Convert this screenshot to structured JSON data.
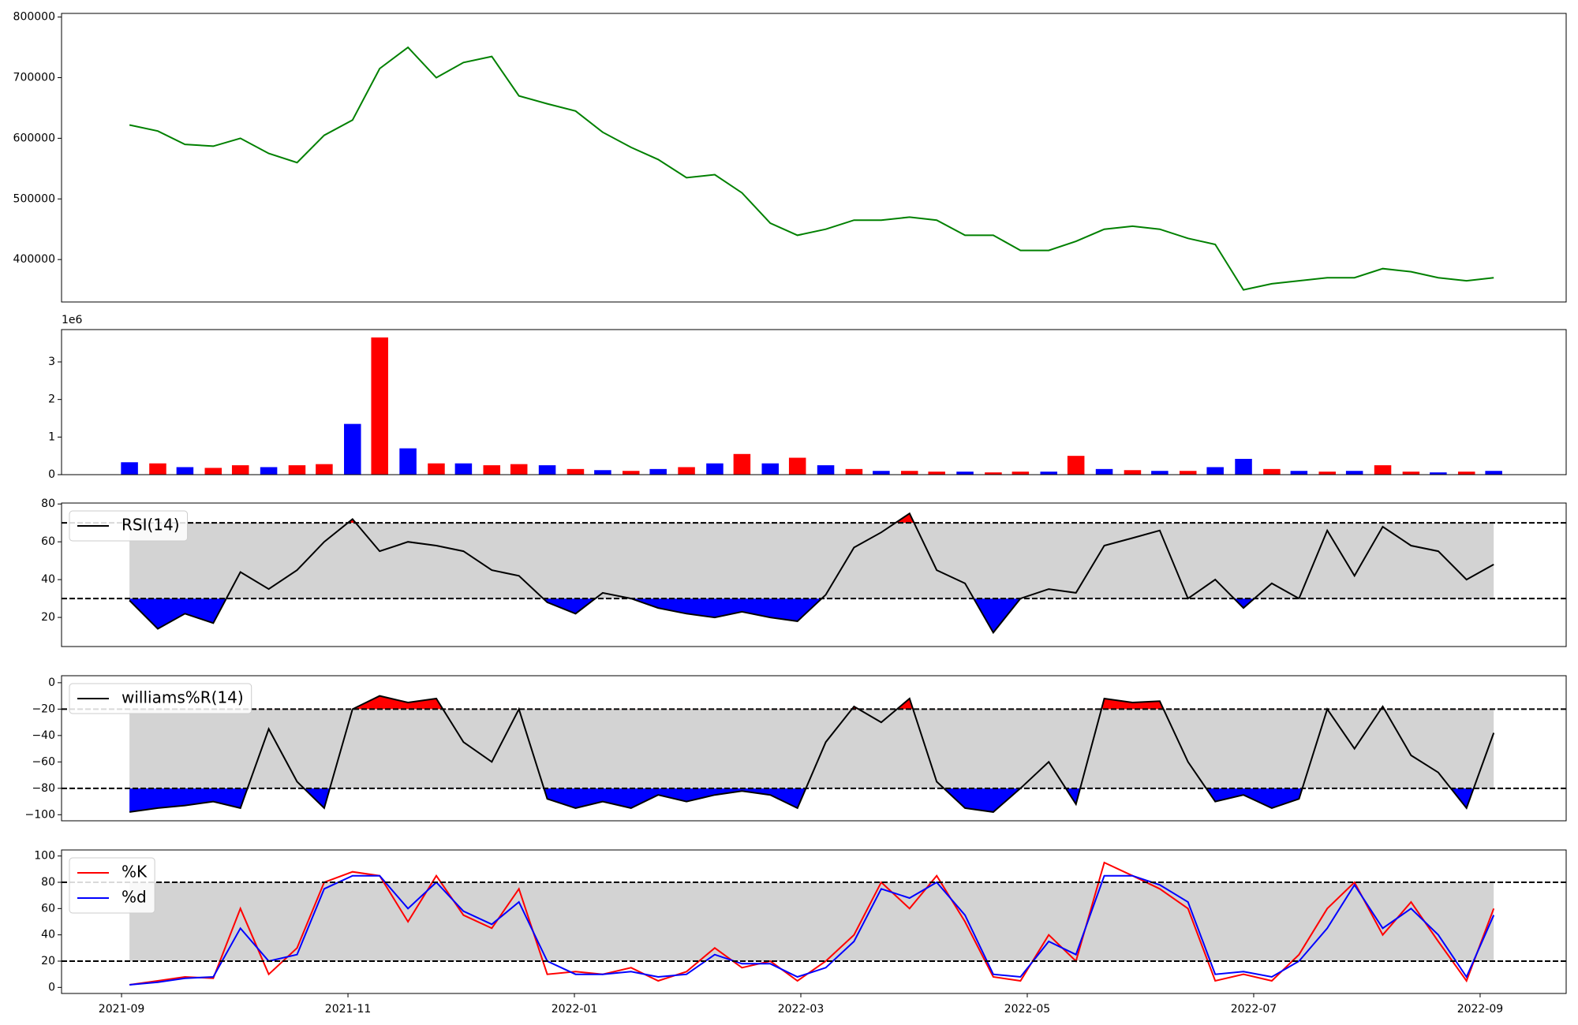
{
  "chart_data": [
    {
      "type": "line",
      "color": "#008000",
      "x": [
        0.07,
        0.32,
        0.56,
        0.81,
        1.05,
        1.3,
        1.55,
        1.79,
        2.04,
        2.28,
        2.53,
        2.78,
        3.02,
        3.27,
        3.51,
        3.76,
        4.01,
        4.25,
        4.5,
        4.74,
        4.99,
        5.24,
        5.48,
        5.73,
        5.97,
        6.22,
        6.47,
        6.71,
        6.96,
        7.2,
        7.45,
        7.7,
        7.94,
        8.19,
        8.43,
        8.68,
        8.93,
        9.17,
        9.42,
        9.66,
        9.91,
        10.16,
        10.4,
        10.65,
        10.89,
        11.14,
        11.39,
        11.63,
        11.88,
        12.12
      ],
      "values": [
        622000,
        612000,
        590000,
        587000,
        600000,
        575000,
        560000,
        605000,
        630000,
        715000,
        750000,
        700000,
        725000,
        735000,
        670000,
        657000,
        645000,
        610000,
        585000,
        565000,
        535000,
        540000,
        510000,
        460000,
        440000,
        450000,
        465000,
        465000,
        470000,
        465000,
        440000,
        440000,
        415000,
        415000,
        430000,
        450000,
        455000,
        450000,
        435000,
        425000,
        350000,
        360000,
        365000,
        370000,
        370000,
        385000,
        380000,
        370000,
        365000,
        370000
      ],
      "xlim": [
        -0.53,
        12.76
      ],
      "ylim": [
        330000,
        806000
      ],
      "yticks": [
        400000,
        500000,
        600000,
        700000,
        800000
      ]
    },
    {
      "type": "bar",
      "offset_text": "1e6",
      "x": [
        0.07,
        0.32,
        0.56,
        0.81,
        1.05,
        1.3,
        1.55,
        1.79,
        2.04,
        2.28,
        2.53,
        2.78,
        3.02,
        3.27,
        3.51,
        3.76,
        4.01,
        4.25,
        4.5,
        4.74,
        4.99,
        5.24,
        5.48,
        5.73,
        5.97,
        6.22,
        6.47,
        6.71,
        6.96,
        7.2,
        7.45,
        7.7,
        7.94,
        8.19,
        8.43,
        8.68,
        8.93,
        9.17,
        9.42,
        9.66,
        9.91,
        10.16,
        10.4,
        10.65,
        10.89,
        11.14,
        11.39,
        11.63,
        11.88,
        12.12
      ],
      "values": [
        0.33,
        0.3,
        0.2,
        0.18,
        0.25,
        0.2,
        0.25,
        0.28,
        1.35,
        3.65,
        0.7,
        0.3,
        0.3,
        0.25,
        0.28,
        0.25,
        0.15,
        0.12,
        0.1,
        0.15,
        0.2,
        0.3,
        0.55,
        0.3,
        0.45,
        0.25,
        0.15,
        0.1,
        0.1,
        0.08,
        0.08,
        0.06,
        0.08,
        0.08,
        0.5,
        0.15,
        0.12,
        0.1,
        0.1,
        0.2,
        0.42,
        0.15,
        0.1,
        0.08,
        0.1,
        0.25,
        0.08,
        0.06,
        0.08,
        0.1
      ],
      "colors": [
        "#0000ff",
        "#ff0000",
        "#0000ff",
        "#ff0000",
        "#ff0000",
        "#0000ff",
        "#ff0000",
        "#ff0000",
        "#0000ff",
        "#ff0000",
        "#0000ff",
        "#ff0000",
        "#0000ff",
        "#ff0000",
        "#ff0000",
        "#0000ff",
        "#ff0000",
        "#0000ff",
        "#ff0000",
        "#0000ff",
        "#ff0000",
        "#0000ff",
        "#ff0000",
        "#0000ff",
        "#ff0000",
        "#0000ff",
        "#ff0000",
        "#0000ff",
        "#ff0000",
        "#ff0000",
        "#0000ff",
        "#ff0000",
        "#ff0000",
        "#0000ff",
        "#ff0000",
        "#0000ff",
        "#ff0000",
        "#0000ff",
        "#ff0000",
        "#0000ff",
        "#0000ff",
        "#ff0000",
        "#0000ff",
        "#ff0000",
        "#0000ff",
        "#ff0000",
        "#ff0000",
        "#0000ff",
        "#ff0000",
        "#0000ff"
      ],
      "xlim": [
        -0.53,
        12.76
      ],
      "ylim": [
        0,
        3.86
      ],
      "yticks": [
        0,
        1,
        2,
        3
      ]
    },
    {
      "type": "line",
      "legend": "upper left",
      "levels": [
        30,
        70
      ],
      "band_color": "#d3d3d3",
      "extreme_fill": {
        "above": "#ff0000",
        "below": "#0000ff"
      },
      "x": [
        0.07,
        0.32,
        0.56,
        0.81,
        1.05,
        1.3,
        1.55,
        1.79,
        2.04,
        2.28,
        2.53,
        2.78,
        3.02,
        3.27,
        3.51,
        3.76,
        4.01,
        4.25,
        4.5,
        4.74,
        4.99,
        5.24,
        5.48,
        5.73,
        5.97,
        6.22,
        6.47,
        6.71,
        6.96,
        7.2,
        7.45,
        7.7,
        7.94,
        8.19,
        8.43,
        8.68,
        8.93,
        9.17,
        9.42,
        9.66,
        9.91,
        10.16,
        10.4,
        10.65,
        10.89,
        11.14,
        11.39,
        11.63,
        11.88,
        12.12
      ],
      "series": [
        {
          "name": "RSI(14)",
          "color": "#000000",
          "values": [
            29,
            14,
            22,
            17,
            44,
            35,
            45,
            60,
            72,
            55,
            60,
            58,
            55,
            45,
            42,
            28,
            22,
            33,
            30,
            25,
            22,
            20,
            23,
            20,
            18,
            32,
            57,
            65,
            75,
            45,
            38,
            12,
            30,
            35,
            33,
            58,
            62,
            66,
            30,
            40,
            25,
            38,
            30,
            66,
            42,
            68,
            58,
            55,
            40,
            48
          ]
        }
      ],
      "xlim": [
        -0.53,
        12.76
      ],
      "ylim": [
        4.6,
        80.5
      ],
      "yticks": [
        20,
        40,
        60,
        80
      ]
    },
    {
      "type": "line",
      "legend": "upper left",
      "levels": [
        -80,
        -20
      ],
      "band_color": "#d3d3d3",
      "extreme_fill": {
        "above": "#ff0000",
        "below": "#0000ff"
      },
      "x": [
        0.07,
        0.32,
        0.56,
        0.81,
        1.05,
        1.3,
        1.55,
        1.79,
        2.04,
        2.28,
        2.53,
        2.78,
        3.02,
        3.27,
        3.51,
        3.76,
        4.01,
        4.25,
        4.5,
        4.74,
        4.99,
        5.24,
        5.48,
        5.73,
        5.97,
        6.22,
        6.47,
        6.71,
        6.96,
        7.2,
        7.45,
        7.7,
        7.94,
        8.19,
        8.43,
        8.68,
        8.93,
        9.17,
        9.42,
        9.66,
        9.91,
        10.16,
        10.4,
        10.65,
        10.89,
        11.14,
        11.39,
        11.63,
        11.88,
        12.12
      ],
      "series": [
        {
          "name": "williams%R(14)",
          "color": "#000000",
          "values": [
            -98,
            -95,
            -93,
            -90,
            -95,
            -35,
            -75,
            -95,
            -20,
            -10,
            -15,
            -12,
            -45,
            -60,
            -20,
            -88,
            -95,
            -90,
            -95,
            -85,
            -90,
            -85,
            -82,
            -85,
            -95,
            -45,
            -18,
            -30,
            -12,
            -75,
            -95,
            -98,
            -80,
            -60,
            -92,
            -12,
            -15,
            -14,
            -60,
            -90,
            -85,
            -95,
            -88,
            -20,
            -50,
            -18,
            -55,
            -68,
            -95,
            -38
          ]
        }
      ],
      "xlim": [
        -0.53,
        12.76
      ],
      "ylim": [
        -104.6,
        5.3
      ],
      "yticks": [
        {
          "value": -100,
          "label": "−100"
        },
        {
          "value": -80,
          "label": "−80"
        },
        {
          "value": -60,
          "label": "−60"
        },
        {
          "value": -40,
          "label": "−40"
        },
        {
          "value": -20,
          "label": "−20"
        },
        0
      ]
    },
    {
      "type": "line",
      "legend": "upper left",
      "levels": [
        20,
        80
      ],
      "band_color": "#d3d3d3",
      "x": [
        0.07,
        0.32,
        0.56,
        0.81,
        1.05,
        1.3,
        1.55,
        1.79,
        2.04,
        2.28,
        2.53,
        2.78,
        3.02,
        3.27,
        3.51,
        3.76,
        4.01,
        4.25,
        4.5,
        4.74,
        4.99,
        5.24,
        5.48,
        5.73,
        5.97,
        6.22,
        6.47,
        6.71,
        6.96,
        7.2,
        7.45,
        7.7,
        7.94,
        8.19,
        8.43,
        8.68,
        8.93,
        9.17,
        9.42,
        9.66,
        9.91,
        10.16,
        10.4,
        10.65,
        10.89,
        11.14,
        11.39,
        11.63,
        11.88,
        12.12
      ],
      "series": [
        {
          "name": "%K",
          "color": "#ff0000",
          "values": [
            2,
            5,
            8,
            7,
            60,
            10,
            30,
            80,
            88,
            85,
            50,
            85,
            55,
            45,
            75,
            10,
            12,
            10,
            15,
            5,
            12,
            30,
            15,
            20,
            5,
            20,
            40,
            80,
            60,
            85,
            50,
            8,
            5,
            40,
            20,
            95,
            85,
            75,
            60,
            5,
            10,
            5,
            25,
            60,
            80,
            40,
            65,
            35,
            5,
            60
          ]
        },
        {
          "name": "%d",
          "color": "#0000ff",
          "values": [
            2,
            4,
            7,
            8,
            45,
            20,
            25,
            75,
            85,
            85,
            60,
            80,
            58,
            48,
            65,
            20,
            10,
            10,
            12,
            8,
            10,
            25,
            18,
            18,
            8,
            15,
            35,
            75,
            68,
            80,
            55,
            10,
            8,
            35,
            25,
            85,
            85,
            78,
            65,
            10,
            12,
            8,
            20,
            45,
            78,
            45,
            60,
            40,
            8,
            55
          ]
        }
      ],
      "xlim": [
        -0.53,
        12.76
      ],
      "ylim": [
        -4.6,
        104.6
      ],
      "yticks": [
        0,
        20,
        40,
        60,
        80,
        100
      ],
      "xticks": [
        {
          "value": 0,
          "label": "2021-09"
        },
        {
          "value": 2,
          "label": "2021-11"
        },
        {
          "value": 4,
          "label": "2022-01"
        },
        {
          "value": 6,
          "label": "2022-03"
        },
        {
          "value": 8,
          "label": "2022-05"
        },
        {
          "value": 10,
          "label": "2022-07"
        },
        {
          "value": 12,
          "label": "2022-09"
        }
      ]
    }
  ]
}
